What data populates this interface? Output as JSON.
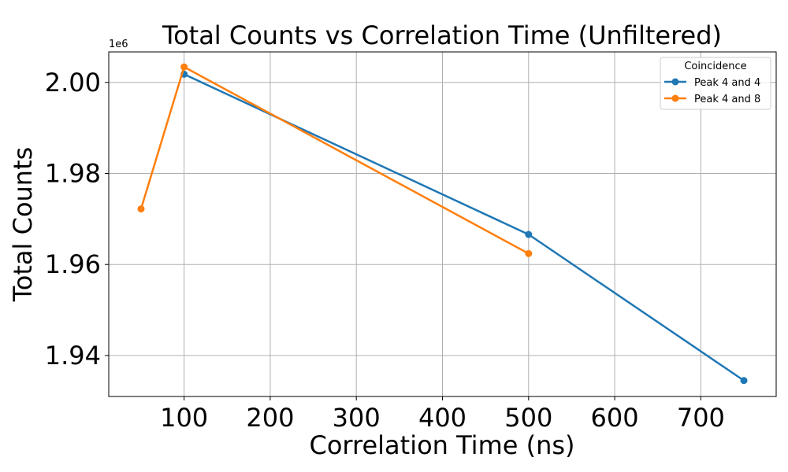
{
  "chart_data": {
    "type": "line",
    "title": "Total Counts vs Correlation Time (Unfiltered)",
    "xlabel": "Correlation Time (ns)",
    "ylabel": "Total Counts",
    "y_offset_label": "1e6",
    "xlim": [
      12.5,
      787.5
    ],
    "ylim": [
      1931000,
      2006700
    ],
    "x_ticks": [
      100,
      200,
      300,
      400,
      500,
      600,
      700
    ],
    "x_tick_labels": [
      "100",
      "200",
      "300",
      "400",
      "500",
      "600",
      "700"
    ],
    "y_ticks": [
      1940000,
      1960000,
      1980000,
      2000000
    ],
    "y_tick_labels": [
      "1.94",
      "1.96",
      "1.98",
      "2.00"
    ],
    "grid": true,
    "legend": {
      "title": "Coincidence",
      "placement": "top-right"
    },
    "series": [
      {
        "name": "Peak 4 and 4",
        "color": "#1f77b4",
        "x": [
          100,
          500,
          750
        ],
        "y": [
          2001800,
          1966600,
          1934500
        ]
      },
      {
        "name": "Peak 4 and 8",
        "color": "#ff7f0e",
        "x": [
          50,
          100,
          500
        ],
        "y": [
          1972200,
          2003400,
          1962400
        ]
      }
    ]
  }
}
